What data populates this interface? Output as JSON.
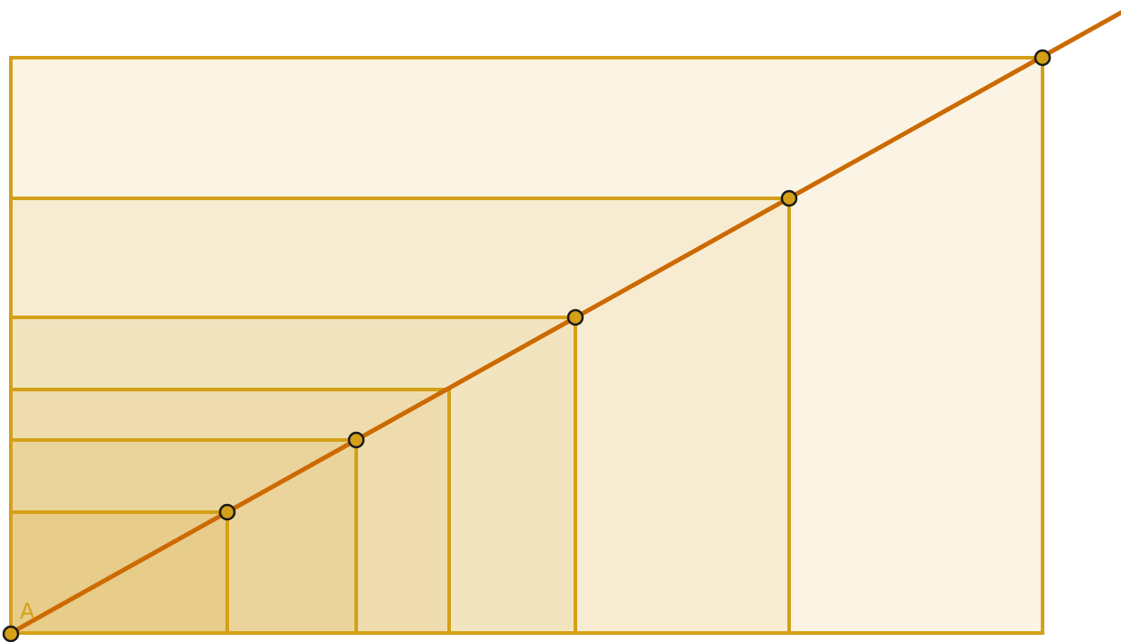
{
  "diagram": {
    "point_label": "A",
    "colors": {
      "rect_stroke": "#d4a017",
      "diagonal": "#cc6a00",
      "point_fill": "#d4a017",
      "point_stroke": "#1a1a1a",
      "label": "#d4a017",
      "fills": [
        "#fbf4e4",
        "#f7ecd2",
        "#f3e4c0",
        "#efdcae",
        "#ebd49c",
        "#e7cc8a"
      ]
    }
  }
}
